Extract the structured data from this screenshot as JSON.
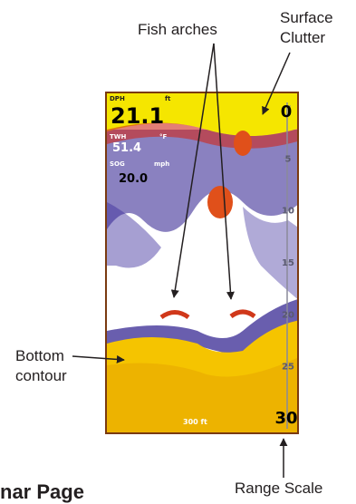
{
  "callouts": {
    "fish_arches": "Fish arches",
    "surface_clutter_line1": "Surface",
    "surface_clutter_line2": "Clutter",
    "bottom_contour_line1": "Bottom",
    "bottom_contour_line2": "contour",
    "range_scale": "Range Scale"
  },
  "sonar": {
    "depth_label": "DPH",
    "depth_unit": "ft",
    "depth_value": "21.1",
    "water_temp_label": "TWH",
    "water_temp_unit": "°F",
    "water_temp_value": "51.4",
    "speed_label": "SOG",
    "speed_unit": "mph",
    "speed_value": "20.0",
    "footer_text": "300 ft",
    "scale_ticks": [
      "0",
      "5",
      "10",
      "15",
      "20",
      "25",
      "30"
    ],
    "scale_max": 30,
    "colors": {
      "surface": "#f5e600",
      "water": "#ffffff",
      "noise": "#2a1a8c",
      "bottom": "#f5c400",
      "fish": "#e0501a",
      "frame": "#7a3a10"
    }
  },
  "page_heading": "nar Page"
}
